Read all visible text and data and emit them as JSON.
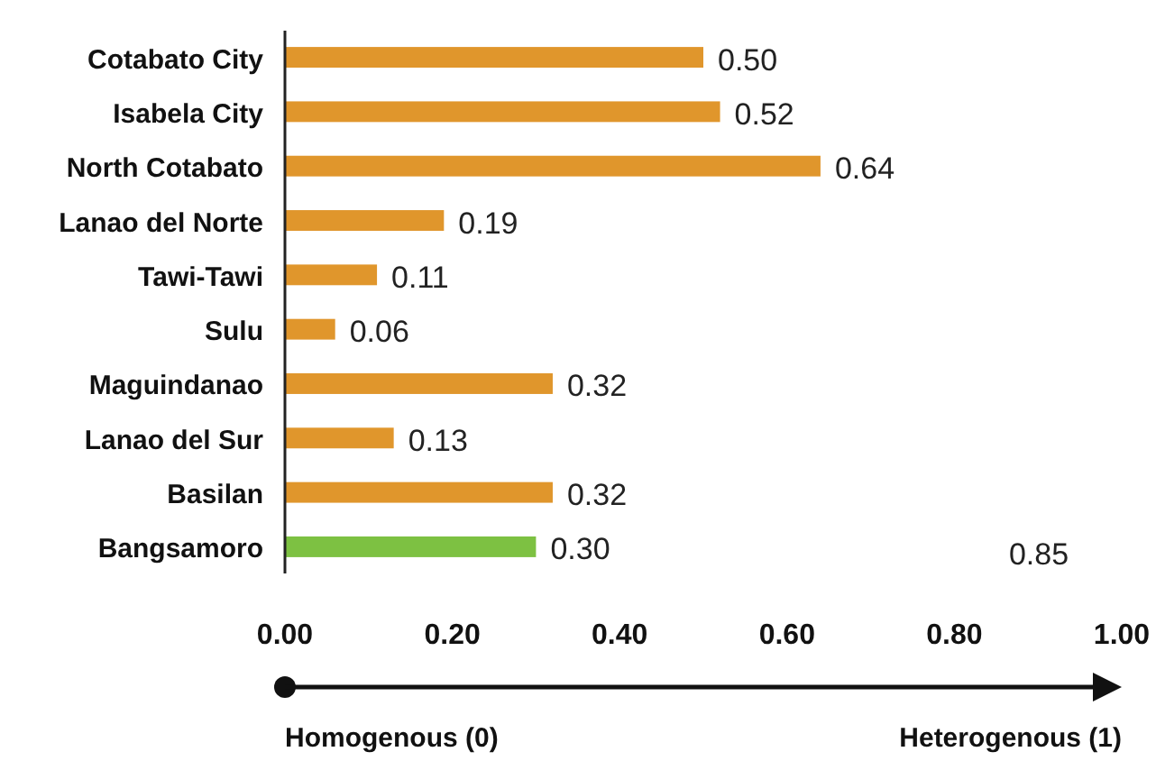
{
  "chart_data": {
    "type": "bar",
    "orientation": "horizontal",
    "categories": [
      "Cotabato City",
      "Isabela City",
      "North Cotabato",
      "Lanao del Norte",
      "Tawi-Tawi",
      "Sulu",
      "Maguindanao",
      "Lanao del Sur",
      "Basilan",
      "Bangsamoro"
    ],
    "values": [
      0.5,
      0.52,
      0.64,
      0.19,
      0.11,
      0.06,
      0.32,
      0.13,
      0.32,
      0.3
    ],
    "colors": [
      "#e0962c",
      "#e0962c",
      "#e0962c",
      "#e0962c",
      "#e0962c",
      "#e0962c",
      "#e0962c",
      "#e0962c",
      "#e0962c",
      "#7dc142"
    ],
    "value_labels": [
      "0.50",
      "0.52",
      "0.64",
      "0.19",
      "0.11",
      "0.06",
      "0.32",
      "0.13",
      "0.32",
      "0.30"
    ],
    "xlim": [
      0,
      1
    ],
    "xticks": [
      {
        "value": 0,
        "label": "0.00"
      },
      {
        "value": 0.2,
        "label": "0.20"
      },
      {
        "value": 0.4,
        "label": "0.40"
      },
      {
        "value": 0.6,
        "label": "0.60"
      },
      {
        "value": 0.8,
        "label": "0.80"
      },
      {
        "value": 1,
        "label": "1.00"
      }
    ],
    "grid": false,
    "annotations": [
      "0.85",
      "Homogenous (0)",
      "Heterogenous (1)"
    ]
  }
}
